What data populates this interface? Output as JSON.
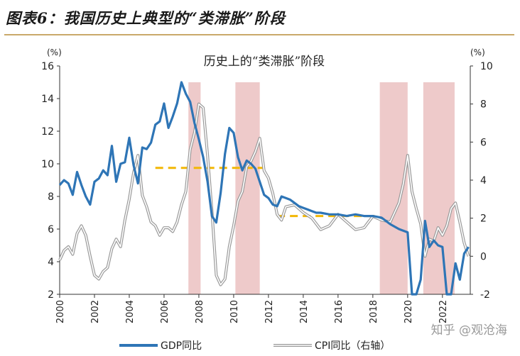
{
  "header": {
    "figure_title": "图表6：我国历史上典型的“类滞胀”阶段"
  },
  "watermark": "知乎 @观沧海",
  "chart_data": {
    "type": "line",
    "title": "历史上的“类滞胀”阶段",
    "left_unit": "(%)",
    "right_unit": "(%)",
    "left_ylim": [
      2,
      16
    ],
    "right_ylim": [
      -2,
      10
    ],
    "left_ticks": [
      2,
      4,
      6,
      8,
      10,
      12,
      14,
      16
    ],
    "right_ticks": [
      -2,
      0,
      2,
      4,
      6,
      8,
      10
    ],
    "xlim": [
      2000,
      2023.6
    ],
    "x_ticks": [
      2000,
      2002,
      2004,
      2006,
      2008,
      2010,
      2012,
      2014,
      2016,
      2018,
      2020,
      2022
    ],
    "stagflation_periods": [
      {
        "start": 2007.4,
        "end": 2008.1
      },
      {
        "start": 2010.1,
        "end": 2011.5
      },
      {
        "start": 2018.4,
        "end": 2020.0
      },
      {
        "start": 2020.9,
        "end": 2022.7
      }
    ],
    "reference_lines": [
      {
        "start": 2005.5,
        "end": 2011.8,
        "value": 9.75,
        "axis": "left"
      },
      {
        "start": 2012.5,
        "end": 2018.3,
        "value": 6.8,
        "axis": "left"
      }
    ],
    "series": [
      {
        "name": "GDP同比",
        "axis": "left",
        "color": "#2e75b6",
        "x": [
          2000.0,
          2000.25,
          2000.5,
          2000.75,
          2001.0,
          2001.25,
          2001.5,
          2001.75,
          2002.0,
          2002.25,
          2002.5,
          2002.75,
          2003.0,
          2003.25,
          2003.5,
          2003.75,
          2004.0,
          2004.25,
          2004.5,
          2004.75,
          2005.0,
          2005.25,
          2005.5,
          2005.75,
          2006.0,
          2006.25,
          2006.5,
          2006.75,
          2007.0,
          2007.25,
          2007.5,
          2007.75,
          2008.0,
          2008.25,
          2008.5,
          2008.75,
          2009.0,
          2009.25,
          2009.5,
          2009.75,
          2010.0,
          2010.25,
          2010.5,
          2010.75,
          2011.0,
          2011.25,
          2011.5,
          2011.75,
          2012.0,
          2012.25,
          2012.5,
          2012.75,
          2013.0,
          2013.25,
          2013.5,
          2013.75,
          2014.0,
          2014.25,
          2014.5,
          2014.75,
          2015.0,
          2015.5,
          2016.0,
          2016.5,
          2017.0,
          2017.5,
          2018.0,
          2018.5,
          2019.0,
          2019.5,
          2020.0,
          2020.25,
          2020.5,
          2020.75,
          2021.0,
          2021.25,
          2021.5,
          2021.75,
          2022.0,
          2022.25,
          2022.5,
          2022.75,
          2023.0,
          2023.25,
          2023.5
        ],
        "values": [
          8.7,
          9.0,
          8.8,
          8.1,
          9.5,
          8.7,
          8.0,
          7.5,
          8.9,
          9.1,
          9.6,
          9.3,
          11.1,
          8.9,
          10.0,
          10.1,
          11.6,
          9.9,
          8.8,
          11.0,
          10.9,
          11.3,
          12.4,
          12.6,
          13.7,
          12.2,
          12.9,
          13.7,
          15.0,
          14.3,
          13.8,
          12.5,
          11.5,
          10.4,
          8.9,
          6.8,
          6.4,
          8.2,
          10.6,
          12.2,
          11.9,
          10.4,
          9.6,
          10.2,
          10.0,
          9.7,
          8.9,
          8.1,
          7.9,
          7.5,
          7.4,
          8.0,
          7.9,
          7.8,
          7.6,
          7.4,
          7.3,
          7.2,
          7.1,
          7.0,
          7.0,
          6.9,
          6.9,
          6.8,
          6.9,
          6.8,
          6.8,
          6.7,
          6.3,
          6.0,
          5.8,
          2.0,
          1.0,
          2.9,
          6.5,
          4.9,
          5.3,
          5.0,
          4.9,
          1.0,
          0.4,
          3.9,
          2.9,
          4.5,
          4.9
        ]
      },
      {
        "name": "CPI同比（右轴）",
        "axis": "right",
        "color": "#b3b3b3",
        "x": [
          2000.0,
          2000.25,
          2000.5,
          2000.75,
          2001.0,
          2001.25,
          2001.5,
          2001.75,
          2002.0,
          2002.25,
          2002.5,
          2002.75,
          2003.0,
          2003.25,
          2003.5,
          2003.75,
          2004.0,
          2004.25,
          2004.5,
          2004.75,
          2005.0,
          2005.25,
          2005.5,
          2005.75,
          2006.0,
          2006.25,
          2006.5,
          2006.75,
          2007.0,
          2007.25,
          2007.5,
          2007.75,
          2008.0,
          2008.25,
          2008.5,
          2008.75,
          2009.0,
          2009.25,
          2009.5,
          2009.75,
          2010.0,
          2010.25,
          2010.5,
          2010.75,
          2011.0,
          2011.25,
          2011.5,
          2011.75,
          2012.0,
          2012.25,
          2012.5,
          2012.75,
          2013.0,
          2013.5,
          2014.0,
          2014.5,
          2015.0,
          2015.5,
          2016.0,
          2016.5,
          2017.0,
          2017.5,
          2018.0,
          2018.5,
          2019.0,
          2019.5,
          2019.75,
          2020.0,
          2020.25,
          2020.5,
          2020.75,
          2021.0,
          2021.25,
          2021.5,
          2021.75,
          2022.0,
          2022.25,
          2022.5,
          2022.75,
          2023.0,
          2023.25,
          2023.5
        ],
        "values": [
          -0.2,
          0.3,
          0.5,
          0.1,
          1.2,
          1.6,
          1.1,
          0.0,
          -1.0,
          -1.2,
          -0.8,
          -0.6,
          0.4,
          0.9,
          0.5,
          1.9,
          3.0,
          4.4,
          5.3,
          3.2,
          2.6,
          1.8,
          1.6,
          1.1,
          1.5,
          1.5,
          1.3,
          1.8,
          2.7,
          3.4,
          5.6,
          6.5,
          8.0,
          7.8,
          5.3,
          2.4,
          -1.0,
          -1.5,
          -1.2,
          0.5,
          1.6,
          2.9,
          3.4,
          4.7,
          5.0,
          5.5,
          6.2,
          4.5,
          4.1,
          3.3,
          2.2,
          1.9,
          2.6,
          2.7,
          2.3,
          2.0,
          1.4,
          1.6,
          2.2,
          1.8,
          1.4,
          1.5,
          2.1,
          1.9,
          1.8,
          2.8,
          3.8,
          5.3,
          3.4,
          2.5,
          1.7,
          0.0,
          0.9,
          0.8,
          1.5,
          1.1,
          1.6,
          2.5,
          2.8,
          1.8,
          0.7,
          0.0
        ]
      }
    ],
    "legend": [
      {
        "label": "GDP同比",
        "color": "#2e75b6"
      },
      {
        "label": "CPI同比（右轴）",
        "color": "#b3b3b3"
      }
    ],
    "legend_position": "bottom"
  }
}
